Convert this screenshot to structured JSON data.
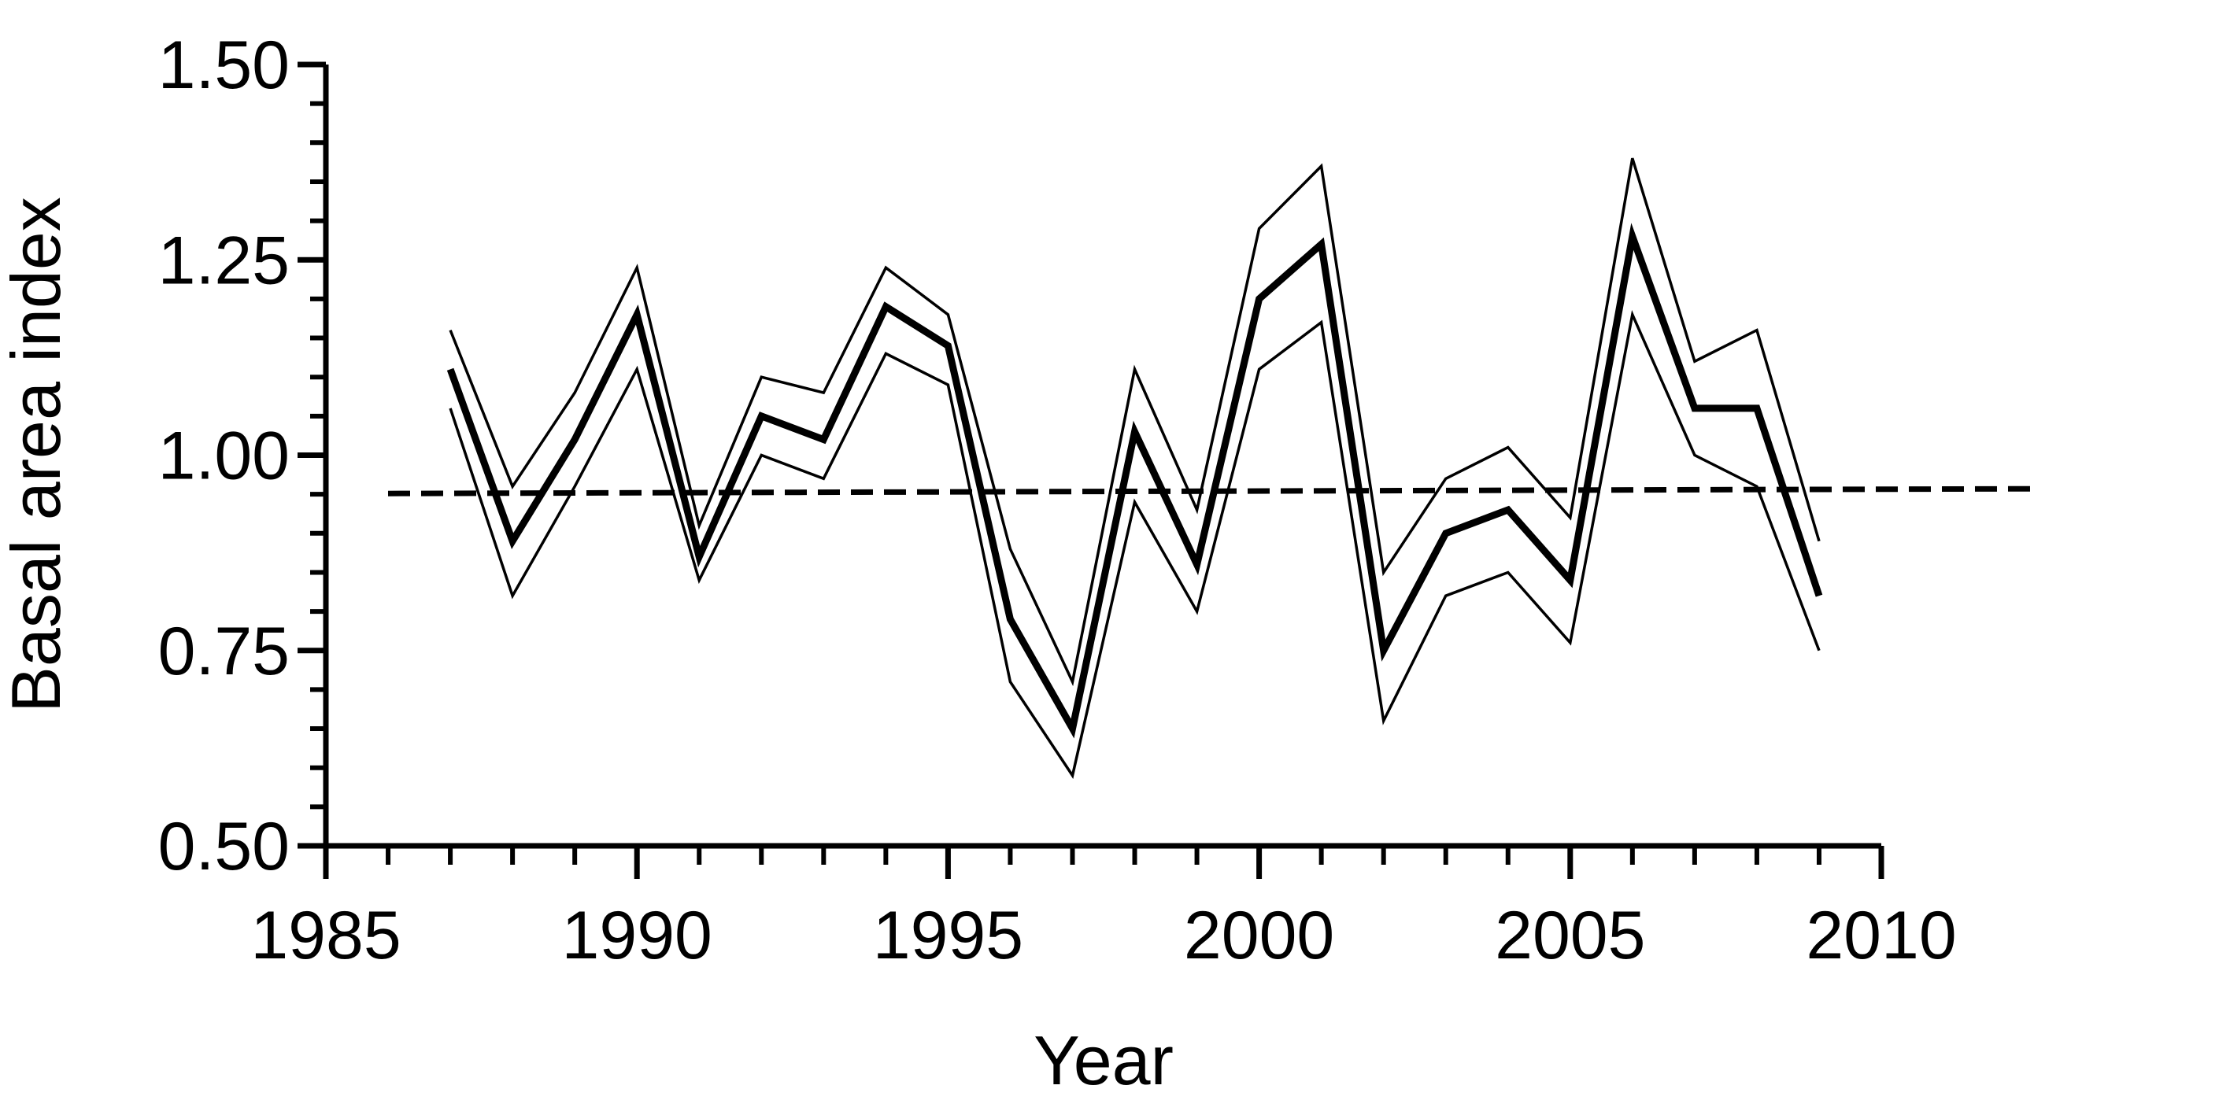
{
  "chart_data": {
    "type": "line",
    "title": "",
    "xlabel": "Year",
    "ylabel": "Basal area index",
    "xlim": [
      1985,
      2010
    ],
    "ylim": [
      0.5,
      1.5
    ],
    "x_ticks": [
      "1985",
      "1990",
      "1995",
      "2000",
      "2005",
      "2010"
    ],
    "y_ticks": [
      "0.50",
      "0.75",
      "1.00",
      "1.25",
      "1.50"
    ],
    "grid": false,
    "legend": "none",
    "x": [
      1987,
      1988,
      1989,
      1990,
      1991,
      1992,
      1993,
      1994,
      1995,
      1996,
      1997,
      1998,
      1999,
      2000,
      2001,
      2002,
      2003,
      2004,
      2005,
      2006,
      2007,
      2008,
      2009
    ],
    "series": [
      {
        "style": "thick",
        "values": [
          1.11,
          0.89,
          1.02,
          1.18,
          0.87,
          1.05,
          1.02,
          1.19,
          1.14,
          0.79,
          0.65,
          1.03,
          0.86,
          1.2,
          1.27,
          0.75,
          0.9,
          0.93,
          0.84,
          1.28,
          1.06,
          1.06,
          0.82
        ]
      },
      {
        "style": "thin",
        "values": [
          1.16,
          0.96,
          1.08,
          1.24,
          0.91,
          1.1,
          1.08,
          1.24,
          1.18,
          0.88,
          0.71,
          1.11,
          0.93,
          1.29,
          1.37,
          0.85,
          0.97,
          1.01,
          0.92,
          1.38,
          1.12,
          1.16,
          0.89
        ]
      },
      {
        "style": "thin",
        "values": [
          1.06,
          0.82,
          0.96,
          1.11,
          0.84,
          1.0,
          0.97,
          1.13,
          1.09,
          0.71,
          0.59,
          0.94,
          0.8,
          1.11,
          1.17,
          0.66,
          0.82,
          0.85,
          0.76,
          1.18,
          1.0,
          0.96,
          0.75
        ]
      }
    ],
    "reference_line": {
      "style": "dashed",
      "x": [
        1986.0,
        2012.5
      ],
      "values": [
        0.951,
        0.957
      ]
    }
  }
}
